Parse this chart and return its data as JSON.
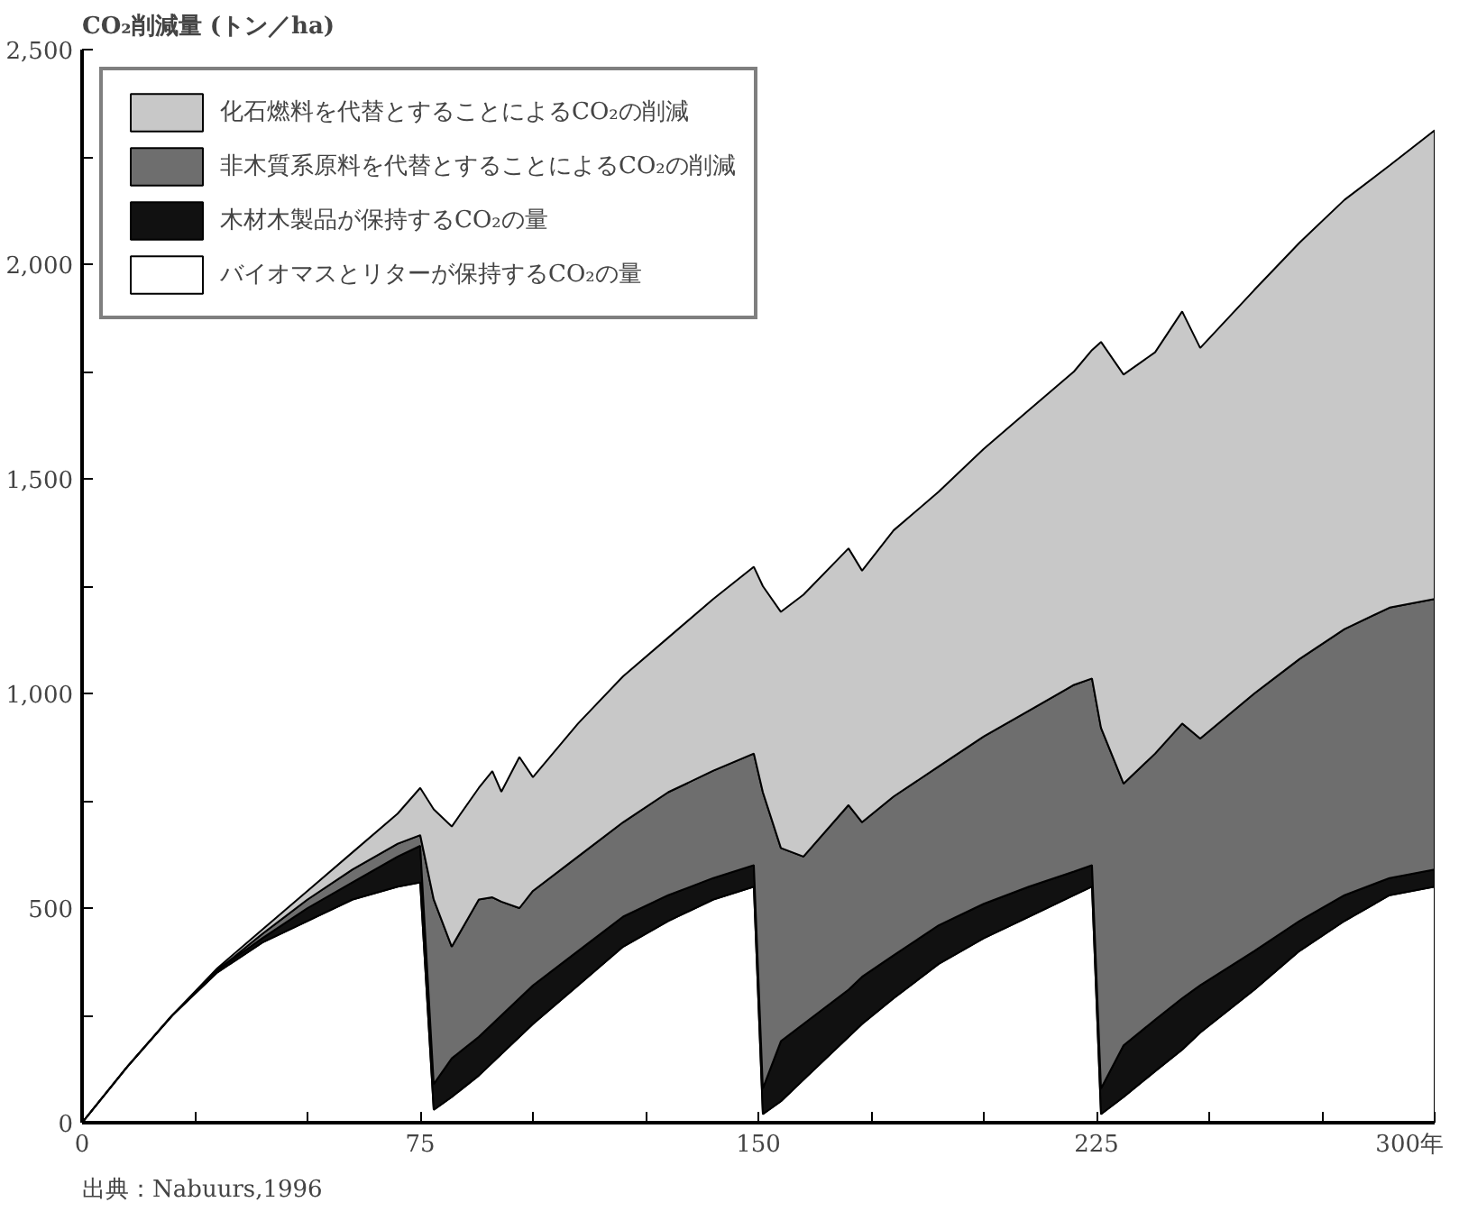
{
  "chart_data": {
    "type": "area",
    "stacked": true,
    "ylabel": "CO₂削減量 (トン／ha)",
    "x": [
      0,
      10,
      20,
      30,
      40,
      50,
      60,
      70,
      75,
      78,
      82,
      88,
      91,
      93,
      97,
      100,
      110,
      120,
      130,
      140,
      149,
      151,
      155,
      160,
      170,
      173,
      180,
      190,
      200,
      210,
      220,
      224,
      226,
      231,
      238,
      244,
      248,
      260,
      270,
      280,
      290,
      300
    ],
    "series": [
      {
        "name": "バイオマスとリターが保持するCO₂の量",
        "color": "#ffffff",
        "values": [
          0,
          130,
          250,
          350,
          420,
          470,
          520,
          550,
          560,
          30,
          60,
          110,
          140,
          160,
          200,
          230,
          320,
          410,
          470,
          520,
          550,
          20,
          50,
          100,
          200,
          230,
          290,
          370,
          430,
          480,
          530,
          550,
          20,
          60,
          120,
          170,
          210,
          310,
          400,
          470,
          530,
          550
        ]
      },
      {
        "name": "木材木製品が保持するCO₂の量",
        "color": "#111111",
        "values": [
          0,
          0,
          0,
          5,
          10,
          30,
          40,
          70,
          85,
          60,
          90,
          90,
          90,
          90,
          90,
          90,
          80,
          70,
          60,
          50,
          50,
          60,
          140,
          130,
          110,
          110,
          100,
          90,
          80,
          70,
          55,
          50,
          60,
          120,
          120,
          120,
          110,
          90,
          70,
          60,
          40,
          40
        ]
      },
      {
        "name": "非木質系原料を代替とすることによるCO₂の削減",
        "color": "#6e6e6e",
        "values": [
          0,
          0,
          0,
          0,
          10,
          20,
          30,
          30,
          25,
          430,
          260,
          320,
          295,
          265,
          210,
          220,
          220,
          220,
          240,
          250,
          260,
          690,
          450,
          390,
          430,
          360,
          370,
          370,
          390,
          410,
          435,
          435,
          840,
          610,
          620,
          640,
          575,
          600,
          610,
          620,
          630,
          630
        ]
      },
      {
        "name": "化石燃料を代替とすることによるCO₂の削減",
        "color": "#c8c8c8",
        "values": [
          0,
          0,
          0,
          5,
          10,
          20,
          40,
          70,
          110,
          210,
          280,
          260,
          294,
          256,
          352,
          265,
          310,
          340,
          360,
          400,
          435,
          480,
          550,
          610,
          598,
          586,
          620,
          640,
          670,
          700,
          730,
          765,
          899,
          953,
          935,
          960,
          910,
          940,
          970,
          1000,
          1030,
          1092
        ]
      }
    ],
    "xlim": [
      0,
      300
    ],
    "ylim": [
      0,
      2500
    ],
    "xticks": [
      0,
      {
        "value": 25,
        "label": null
      },
      {
        "value": 50,
        "label": null
      },
      75,
      {
        "value": 100,
        "label": null
      },
      {
        "value": 125,
        "label": null
      },
      150,
      {
        "value": 175,
        "label": null
      },
      {
        "value": 200,
        "label": null
      },
      225,
      {
        "value": 250,
        "label": null
      },
      {
        "value": 275,
        "label": null
      },
      {
        "value": 300,
        "label": "300年"
      }
    ],
    "yticks": [
      0,
      {
        "value": 250,
        "label": null
      },
      500,
      {
        "value": 750,
        "label": null
      },
      {
        "value": 1000,
        "label": "1,000"
      },
      {
        "value": 1250,
        "label": null
      },
      {
        "value": 1500,
        "label": "1,500"
      },
      {
        "value": 1750,
        "label": null
      },
      {
        "value": 2000,
        "label": "2,000"
      },
      {
        "value": 2250,
        "label": null
      },
      {
        "value": 2500,
        "label": "2,500"
      }
    ],
    "grid": false,
    "legend": "top left",
    "annotations": [
      "出典：Nabuurs,1996"
    ]
  }
}
